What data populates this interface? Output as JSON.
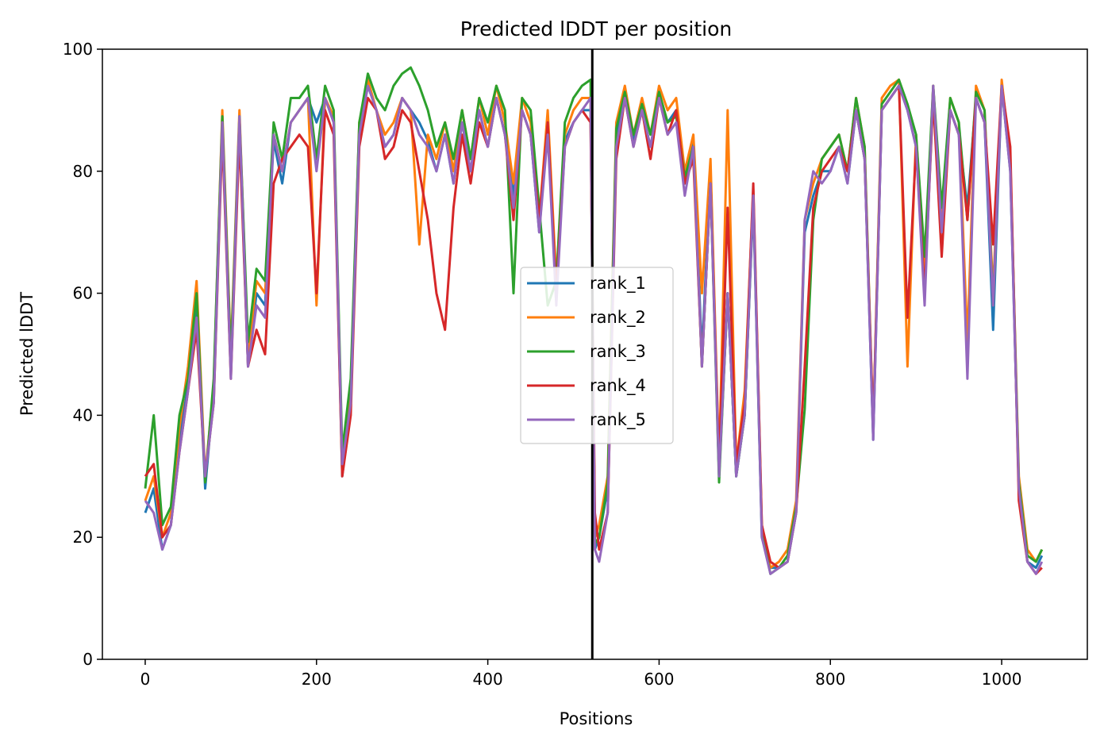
{
  "chart_data": {
    "type": "line",
    "title": "Predicted lDDT per position",
    "xlabel": "Positions",
    "ylabel": "Predicted lDDT",
    "xlim": [
      -50,
      1100
    ],
    "ylim": [
      0,
      100
    ],
    "xticks": [
      0,
      200,
      400,
      600,
      800,
      1000
    ],
    "yticks": [
      0,
      20,
      40,
      60,
      80,
      100
    ],
    "grid": false,
    "legend_position": "center",
    "vline_x": 522,
    "colors": {
      "rank_1": "#1f77b4",
      "rank_2": "#ff7f0e",
      "rank_3": "#2ca02c",
      "rank_4": "#d62728",
      "rank_5": "#9467bd",
      "vline": "#000000"
    },
    "x": [
      0,
      10,
      20,
      30,
      40,
      50,
      60,
      70,
      80,
      90,
      100,
      110,
      120,
      130,
      140,
      150,
      160,
      170,
      180,
      190,
      200,
      210,
      220,
      230,
      240,
      250,
      260,
      270,
      280,
      290,
      300,
      310,
      320,
      330,
      340,
      350,
      360,
      370,
      380,
      390,
      400,
      410,
      420,
      430,
      440,
      450,
      460,
      470,
      480,
      490,
      500,
      510,
      520,
      525,
      530,
      540,
      550,
      560,
      570,
      580,
      590,
      600,
      610,
      620,
      630,
      640,
      650,
      660,
      670,
      680,
      690,
      700,
      710,
      720,
      730,
      740,
      750,
      760,
      770,
      780,
      790,
      800,
      810,
      820,
      830,
      840,
      850,
      860,
      870,
      880,
      890,
      900,
      910,
      920,
      930,
      940,
      950,
      960,
      970,
      980,
      990,
      1000,
      1010,
      1020,
      1030,
      1040,
      1047
    ],
    "series": [
      {
        "name": "rank_1",
        "values": [
          24,
          28,
          18,
          22,
          36,
          45,
          58,
          28,
          44,
          88,
          48,
          88,
          48,
          60,
          58,
          85,
          78,
          88,
          90,
          92,
          88,
          92,
          88,
          30,
          42,
          86,
          94,
          90,
          84,
          86,
          92,
          90,
          88,
          85,
          80,
          86,
          78,
          88,
          80,
          90,
          84,
          92,
          86,
          76,
          90,
          86,
          70,
          88,
          60,
          85,
          88,
          90,
          90,
          18,
          20,
          28,
          86,
          92,
          85,
          90,
          84,
          92,
          88,
          90,
          78,
          85,
          50,
          80,
          30,
          60,
          30,
          40,
          75,
          20,
          15,
          15,
          16,
          24,
          70,
          76,
          80,
          80,
          84,
          78,
          90,
          82,
          36,
          90,
          92,
          94,
          90,
          84,
          62,
          92,
          70,
          90,
          86,
          74,
          92,
          88,
          54,
          94,
          80,
          28,
          16,
          15,
          17
        ]
      },
      {
        "name": "rank_2",
        "values": [
          26,
          30,
          20,
          24,
          38,
          48,
          62,
          30,
          45,
          90,
          50,
          90,
          50,
          62,
          60,
          86,
          80,
          88,
          90,
          92,
          58,
          92,
          89,
          32,
          44,
          88,
          95,
          90,
          86,
          88,
          92,
          90,
          68,
          86,
          82,
          88,
          80,
          90,
          82,
          92,
          86,
          94,
          88,
          78,
          92,
          88,
          72,
          90,
          62,
          86,
          90,
          92,
          92,
          20,
          22,
          30,
          88,
          94,
          86,
          92,
          86,
          94,
          90,
          92,
          80,
          86,
          60,
          82,
          32,
          90,
          32,
          44,
          77,
          22,
          15,
          16,
          18,
          26,
          72,
          78,
          82,
          84,
          86,
          80,
          92,
          84,
          38,
          92,
          94,
          95,
          48,
          86,
          64,
          94,
          72,
          92,
          88,
          52,
          94,
          90,
          60,
          95,
          82,
          30,
          18,
          16,
          18
        ]
      },
      {
        "name": "rank_3",
        "values": [
          28,
          40,
          22,
          25,
          40,
          46,
          60,
          29,
          46,
          89,
          49,
          89,
          52,
          64,
          62,
          88,
          82,
          92,
          92,
          94,
          82,
          94,
          90,
          34,
          46,
          88,
          96,
          92,
          90,
          94,
          96,
          97,
          94,
          90,
          84,
          88,
          82,
          90,
          82,
          92,
          88,
          94,
          90,
          60,
          92,
          90,
          74,
          58,
          62,
          88,
          92,
          94,
          95,
          19,
          20,
          29,
          87,
          93,
          86,
          91,
          86,
          93,
          88,
          89,
          79,
          84,
          48,
          78,
          29,
          60,
          30,
          40,
          76,
          21,
          14,
          15,
          17,
          25,
          41,
          72,
          82,
          84,
          86,
          80,
          92,
          84,
          37,
          91,
          93,
          95,
          91,
          86,
          66,
          94,
          74,
          92,
          88,
          72,
          93,
          90,
          58,
          94,
          82,
          29,
          17,
          16,
          18
        ]
      },
      {
        "name": "rank_4",
        "values": [
          30,
          32,
          20,
          22,
          34,
          44,
          54,
          30,
          42,
          86,
          46,
          86,
          48,
          54,
          50,
          78,
          82,
          84,
          86,
          84,
          60,
          90,
          86,
          30,
          40,
          84,
          92,
          90,
          82,
          84,
          90,
          88,
          80,
          72,
          60,
          54,
          74,
          86,
          78,
          88,
          84,
          92,
          86,
          72,
          90,
          86,
          72,
          88,
          60,
          84,
          88,
          90,
          88,
          24,
          18,
          24,
          82,
          92,
          84,
          90,
          82,
          92,
          86,
          90,
          78,
          82,
          48,
          78,
          32,
          74,
          32,
          42,
          78,
          22,
          16,
          15,
          16,
          24,
          48,
          74,
          80,
          82,
          84,
          80,
          90,
          82,
          38,
          90,
          92,
          94,
          56,
          84,
          60,
          92,
          66,
          90,
          86,
          72,
          92,
          88,
          68,
          94,
          84,
          26,
          16,
          14,
          15
        ]
      },
      {
        "name": "rank_5",
        "values": [
          26,
          24,
          18,
          22,
          34,
          44,
          56,
          30,
          42,
          88,
          46,
          89,
          48,
          58,
          56,
          86,
          80,
          88,
          90,
          92,
          80,
          92,
          88,
          32,
          42,
          86,
          94,
          90,
          84,
          86,
          92,
          90,
          86,
          84,
          80,
          86,
          78,
          88,
          80,
          90,
          84,
          92,
          86,
          74,
          90,
          86,
          70,
          86,
          58,
          84,
          88,
          90,
          92,
          18,
          16,
          24,
          84,
          92,
          84,
          90,
          84,
          92,
          86,
          88,
          76,
          84,
          48,
          78,
          30,
          60,
          30,
          40,
          76,
          20,
          14,
          15,
          16,
          24,
          72,
          80,
          78,
          80,
          84,
          78,
          90,
          82,
          36,
          90,
          92,
          94,
          90,
          84,
          58,
          94,
          70,
          90,
          86,
          46,
          92,
          88,
          58,
          94,
          80,
          28,
          16,
          14,
          16
        ]
      }
    ]
  }
}
